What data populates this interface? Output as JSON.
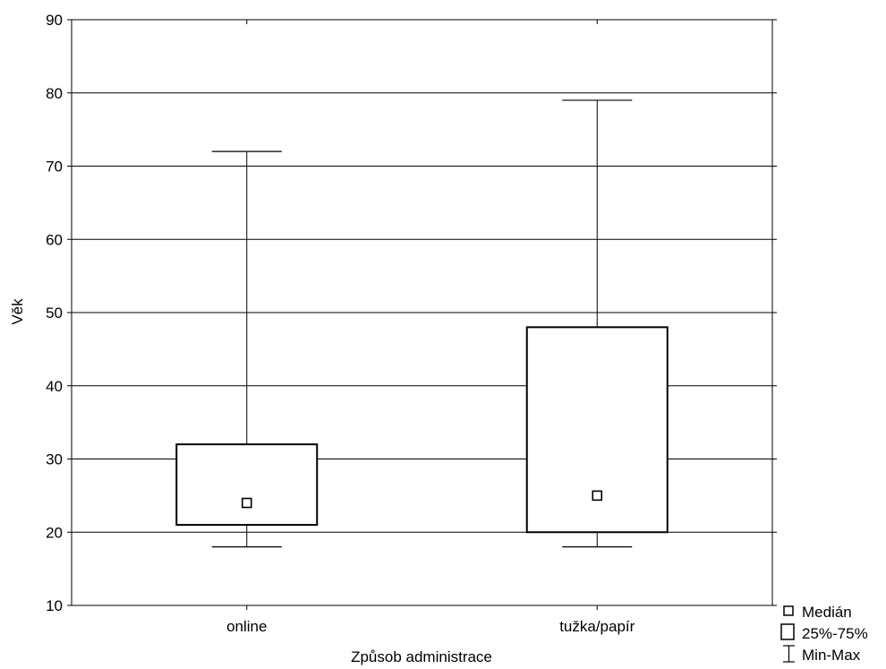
{
  "chart_data": {
    "type": "boxplot",
    "xlabel": "Způsob administrace",
    "ylabel": "Věk",
    "ylim": [
      10,
      90
    ],
    "yticks": [
      10,
      20,
      30,
      40,
      50,
      60,
      70,
      80,
      90
    ],
    "grid": true,
    "legend_position": "bottom-right",
    "categories": [
      "online",
      "tužka/papír"
    ],
    "boxes": [
      {
        "category": "online",
        "min": 18,
        "q1": 21,
        "median": 24,
        "q3": 32,
        "max": 72
      },
      {
        "category": "tužka/papír",
        "min": 18,
        "q1": 20,
        "median": 25,
        "q3": 48,
        "max": 79
      }
    ],
    "legend": {
      "median_label": "Medián",
      "iqr_label": "25%-75%",
      "range_label": "Min-Max"
    }
  },
  "colors": {
    "line": "#000000",
    "background": "#ffffff"
  }
}
